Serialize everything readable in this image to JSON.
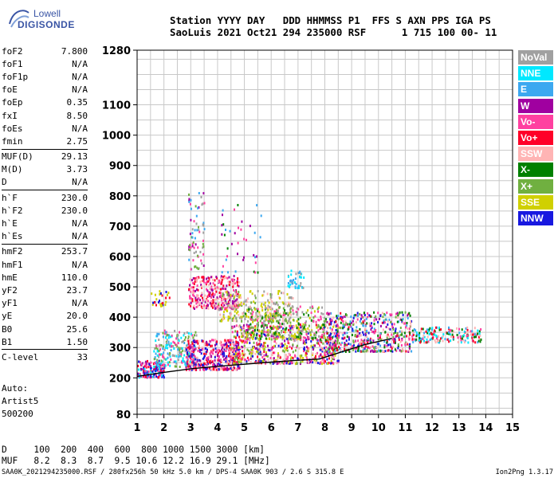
{
  "logo": {
    "line1": "Lowell",
    "line2": "DIGISONDE"
  },
  "header": {
    "line1": "Station YYYY DAY   DDD HHMMSS P1  FFS S AXN PPS IGA PS",
    "line2": "SaoLuis 2021 Oct21 294 235000 RSF      1 715 100 00- 11"
  },
  "params": {
    "g1": [
      {
        "label": "foF2",
        "value": "7.800"
      },
      {
        "label": "foF1",
        "value": "N/A"
      },
      {
        "label": "foF1p",
        "value": "N/A"
      },
      {
        "label": "foE",
        "value": "N/A"
      },
      {
        "label": "foEp",
        "value": "0.35"
      },
      {
        "label": "fxI",
        "value": "8.50"
      },
      {
        "label": "foEs",
        "value": "N/A"
      },
      {
        "label": "fmin",
        "value": "2.75"
      }
    ],
    "g2": [
      {
        "label": "MUF(D)",
        "value": "29.13"
      },
      {
        "label": "M(D)",
        "value": "3.73"
      },
      {
        "label": "D",
        "value": "N/A"
      }
    ],
    "g3": [
      {
        "label": "h`F",
        "value": "230.0"
      },
      {
        "label": "h`F2",
        "value": "230.0"
      },
      {
        "label": "h`E",
        "value": "N/A"
      },
      {
        "label": "h`Es",
        "value": "N/A"
      }
    ],
    "g4": [
      {
        "label": "hmF2",
        "value": "253.7"
      },
      {
        "label": "hmF1",
        "value": "N/A"
      },
      {
        "label": "hmE",
        "value": "110.0"
      },
      {
        "label": "yF2",
        "value": "23.7"
      },
      {
        "label": "yF1",
        "value": "N/A"
      },
      {
        "label": "yE",
        "value": "20.0"
      },
      {
        "label": "B0",
        "value": "25.6"
      },
      {
        "label": "B1",
        "value": "1.50"
      }
    ],
    "g5": [
      {
        "label": "C-level",
        "value": "33"
      }
    ]
  },
  "auto": {
    "line1": "Auto:",
    "line2": "Artist5",
    "line3": "500200"
  },
  "legend": [
    {
      "label": "NoVal",
      "color": "#a0a0a0"
    },
    {
      "label": "NNE",
      "color": "#00e8ff"
    },
    {
      "label": "E",
      "color": "#3ca8f0"
    },
    {
      "label": "W",
      "color": "#a000a0"
    },
    {
      "label": "Vo-",
      "color": "#ff40a0"
    },
    {
      "label": "Vo+",
      "color": "#ff0028"
    },
    {
      "label": "SSW",
      "color": "#ffb4b4"
    },
    {
      "label": "X-",
      "color": "#008000"
    },
    {
      "label": "X+",
      "color": "#70b040"
    },
    {
      "label": "SSE",
      "color": "#d0d000"
    },
    {
      "label": "NNW",
      "color": "#1818e0"
    }
  ],
  "dmuf": {
    "d_line": "D     100  200  400  600  800 1000 1500 3000 [km]",
    "muf_line": "MUF   8.2  8.3  8.7  9.5 10.6 12.2 16.9 29.1 [MHz]"
  },
  "footer": {
    "left": "SAA0K_2021294235000.RSF / 280fx256h 50 kHz 5.0 km / DPS-4 SAA0K 903 / 2.6 S 315.8 E",
    "right": "Ion2Png 1.3.17"
  },
  "chart_data": {
    "type": "scatter",
    "xlim": [
      1,
      15
    ],
    "ylim": [
      80,
      1280
    ],
    "xticks": [
      "1",
      "2",
      "3",
      "4",
      "5",
      "6",
      "7",
      "8",
      "9",
      "10",
      "11",
      "12",
      "13",
      "14",
      "15"
    ],
    "yticks": [
      {
        "v": 80,
        "label": "80"
      },
      {
        "v": 200,
        "label": "200"
      },
      {
        "v": 300,
        "label": "300"
      },
      {
        "v": 400,
        "label": "400"
      },
      {
        "v": 500,
        "label": "500"
      },
      {
        "v": 600,
        "label": "600"
      },
      {
        "v": 700,
        "label": "700"
      },
      {
        "v": 800,
        "label": "800"
      },
      {
        "v": 900,
        "label": "900"
      },
      {
        "v": 1000,
        "label": "1000"
      },
      {
        "v": 1100,
        "label": "1100"
      },
      {
        "v": 1280,
        "label": "1280"
      }
    ],
    "grid": true,
    "profile_line": [
      [
        1.0,
        205
      ],
      [
        2.0,
        218
      ],
      [
        3.0,
        230
      ],
      [
        4.0,
        238
      ],
      [
        5.0,
        245
      ],
      [
        6.0,
        252
      ],
      [
        7.0,
        258
      ],
      [
        7.8,
        262
      ],
      [
        8.5,
        282
      ],
      [
        9.5,
        310
      ],
      [
        10.5,
        330
      ]
    ],
    "clusters": [
      {
        "x": [
          1.0,
          2.0
        ],
        "y": [
          205,
          260
        ],
        "n": 160,
        "colors": [
          4,
          5,
          10,
          3,
          1
        ]
      },
      {
        "x": [
          1.6,
          3.2
        ],
        "y": [
          240,
          360
        ],
        "n": 220,
        "colors": [
          1,
          2,
          8,
          4,
          0
        ]
      },
      {
        "x": [
          2.8,
          4.8
        ],
        "y": [
          230,
          330
        ],
        "n": 420,
        "colors": [
          5,
          4,
          3,
          6,
          10
        ]
      },
      {
        "x": [
          2.9,
          4.8
        ],
        "y": [
          430,
          540
        ],
        "n": 320,
        "colors": [
          3,
          4,
          5,
          6
        ]
      },
      {
        "x": [
          4.0,
          6.8
        ],
        "y": [
          390,
          490
        ],
        "n": 260,
        "colors": [
          9,
          8,
          6,
          0
        ]
      },
      {
        "x": [
          4.5,
          8.5
        ],
        "y": [
          250,
          380
        ],
        "n": 650,
        "colors": [
          5,
          4,
          6,
          3,
          8,
          9,
          10
        ]
      },
      {
        "x": [
          5.0,
          8.0
        ],
        "y": [
          330,
          440
        ],
        "n": 300,
        "colors": [
          8,
          7,
          9,
          4,
          0
        ]
      },
      {
        "x": [
          8.0,
          11.2
        ],
        "y": [
          290,
          420
        ],
        "n": 520,
        "colors": [
          5,
          4,
          3,
          6,
          7,
          8,
          10,
          2
        ]
      },
      {
        "x": [
          11.2,
          13.8
        ],
        "y": [
          320,
          370
        ],
        "n": 180,
        "colors": [
          4,
          5,
          6,
          2,
          1,
          7
        ]
      },
      {
        "x": [
          6.6,
          7.2
        ],
        "y": [
          500,
          560
        ],
        "n": 40,
        "colors": [
          1,
          2,
          0
        ]
      },
      {
        "x": [
          1.5,
          2.2
        ],
        "y": [
          440,
          490
        ],
        "n": 30,
        "colors": [
          10,
          5,
          9
        ]
      },
      {
        "x": [
          2.9,
          3.5
        ],
        "y": [
          560,
          820
        ],
        "n": 70,
        "colors": [
          3,
          4,
          0,
          2,
          8
        ]
      },
      {
        "x": [
          4.0,
          5.6
        ],
        "y": [
          550,
          780
        ],
        "n": 40,
        "colors": [
          3,
          4,
          7,
          2
        ]
      }
    ]
  }
}
